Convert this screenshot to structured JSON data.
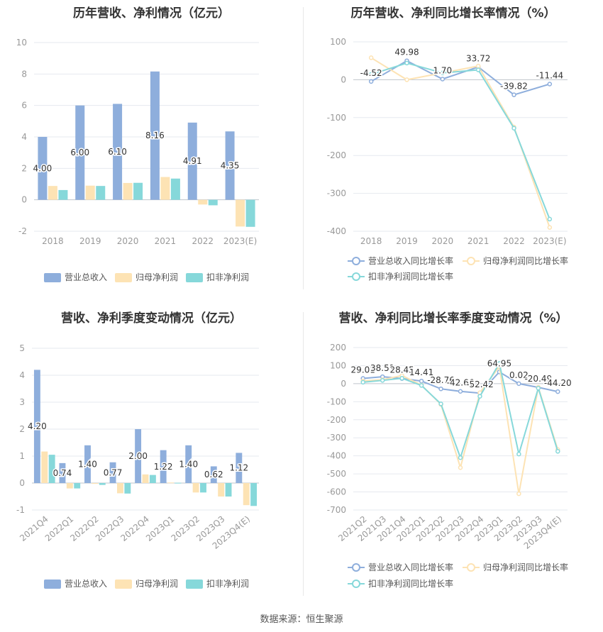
{
  "footer": {
    "source": "数据来源：恒生聚源"
  },
  "colors": {
    "revenue": "#8eaedc",
    "net_profit": "#fde3b4",
    "deducted_profit": "#86d8da",
    "revenue_line": "#8eaedc",
    "net_profit_line": "#fde3b4",
    "deducted_line": "#86d8da",
    "grid": "#e6e9ef",
    "axis_text": "#999999",
    "label_text": "#333333"
  },
  "chart_data": [
    {
      "id": "annual_amounts",
      "type": "bar",
      "title": "历年营收、净利情况（亿元）",
      "categories": [
        "2018",
        "2019",
        "2020",
        "2021",
        "2022",
        "2023(E)"
      ],
      "ylim": [
        -2,
        10
      ],
      "yticks": [
        "10",
        "8",
        "6",
        "4",
        "2",
        "0",
        "-2"
      ],
      "series": [
        {
          "name": "营业总收入",
          "values": [
            4.0,
            6.0,
            6.1,
            8.16,
            4.91,
            4.35
          ],
          "labels": [
            "4.00",
            "6.00",
            "6.10",
            "8.16",
            "4.91",
            "4.35"
          ]
        },
        {
          "name": "归母净利润",
          "values": [
            0.88,
            0.9,
            1.07,
            1.45,
            -0.3,
            -1.7
          ]
        },
        {
          "name": "扣非净利润",
          "values": [
            0.62,
            0.88,
            1.08,
            1.35,
            -0.35,
            -1.72
          ]
        }
      ],
      "legend_position": "bottom",
      "grid": true
    },
    {
      "id": "annual_growth",
      "type": "line",
      "title": "历年营收、净利同比增长率情况（%）",
      "categories": [
        "2018",
        "2019",
        "2020",
        "2021",
        "2022",
        "2023(E)"
      ],
      "ylim": [
        -400,
        100
      ],
      "yticks": [
        "100",
        "0",
        "-100",
        "-200",
        "-300",
        "-400"
      ],
      "series": [
        {
          "name": "营业总收入同比增长率",
          "values": [
            -4.52,
            49.98,
            1.7,
            33.72,
            -39.82,
            -11.44
          ],
          "labels": [
            "-4.52",
            "49.98",
            "1.70",
            "33.72",
            "-39.82",
            "-11.44"
          ]
        },
        {
          "name": "归母净利润同比增长率",
          "values": [
            58,
            0,
            18,
            36,
            -125,
            -390
          ]
        },
        {
          "name": "扣非净利润同比增长率",
          "values": [
            14,
            44,
            18,
            26,
            -128,
            -368
          ]
        }
      ],
      "legend_position": "bottom",
      "grid": true
    },
    {
      "id": "quarterly_amounts",
      "type": "bar",
      "title": "营收、净利季度变动情况（亿元）",
      "categories": [
        "2021Q4",
        "2022Q1",
        "2022Q2",
        "2022Q3",
        "2022Q4",
        "2023Q1",
        "2023Q2",
        "2023Q3",
        "2023Q4(E)"
      ],
      "ylim": [
        -1,
        5
      ],
      "yticks": [
        "5",
        "4",
        "3",
        "2",
        "1",
        "0",
        "-1"
      ],
      "series": [
        {
          "name": "营业总收入",
          "values": [
            4.2,
            0.74,
            1.4,
            0.77,
            2.0,
            1.22,
            1.4,
            0.62,
            1.12
          ],
          "labels": [
            "4.20",
            "0.74",
            "1.40",
            "0.77",
            "2.00",
            "1.22",
            "1.40",
            "0.62",
            "1.12"
          ]
        },
        {
          "name": "归母净利润",
          "values": [
            1.17,
            -0.2,
            -0.03,
            -0.38,
            0.32,
            0.02,
            -0.35,
            -0.5,
            -0.82
          ]
        },
        {
          "name": "扣非净利润",
          "values": [
            1.05,
            -0.2,
            -0.07,
            -0.39,
            0.3,
            0.01,
            -0.35,
            -0.5,
            -0.85
          ]
        }
      ],
      "legend_position": "bottom",
      "grid": true
    },
    {
      "id": "quarterly_growth",
      "type": "line",
      "title": "营收、净利同比增长率季度变动情况（%）",
      "categories": [
        "2021Q2",
        "2021Q3",
        "2021Q4",
        "2022Q1",
        "2022Q2",
        "2022Q3",
        "2022Q4",
        "2023Q1",
        "2023Q2",
        "2023Q3",
        "2023Q4(E)"
      ],
      "ylim": [
        -700,
        200
      ],
      "yticks": [
        "200",
        "100",
        "0",
        "-100",
        "-200",
        "-300",
        "-400",
        "-500",
        "-600",
        "-700"
      ],
      "series": [
        {
          "name": "营业总收入同比增长率",
          "values": [
            29.01,
            38.51,
            28.45,
            14.41,
            -28.76,
            -42.66,
            -52.42,
            64.95,
            0.02,
            -20.49,
            -44.2
          ],
          "labels": [
            "29.01",
            "38.51",
            "28.45",
            "14.41",
            "-28.76",
            "-42.66",
            "-52.42",
            "64.95",
            "0.02",
            "-20.49",
            "-44.20"
          ]
        },
        {
          "name": "归母净利润同比增长率",
          "values": [
            15,
            22,
            45,
            -8,
            -115,
            -465,
            -50,
            95,
            -610,
            -20,
            -365
          ]
        },
        {
          "name": "扣非净利润同比增长率",
          "values": [
            8,
            18,
            30,
            -10,
            -112,
            -410,
            -70,
            112,
            -390,
            -25,
            -375
          ]
        }
      ],
      "legend_position": "bottom",
      "grid": true
    }
  ]
}
